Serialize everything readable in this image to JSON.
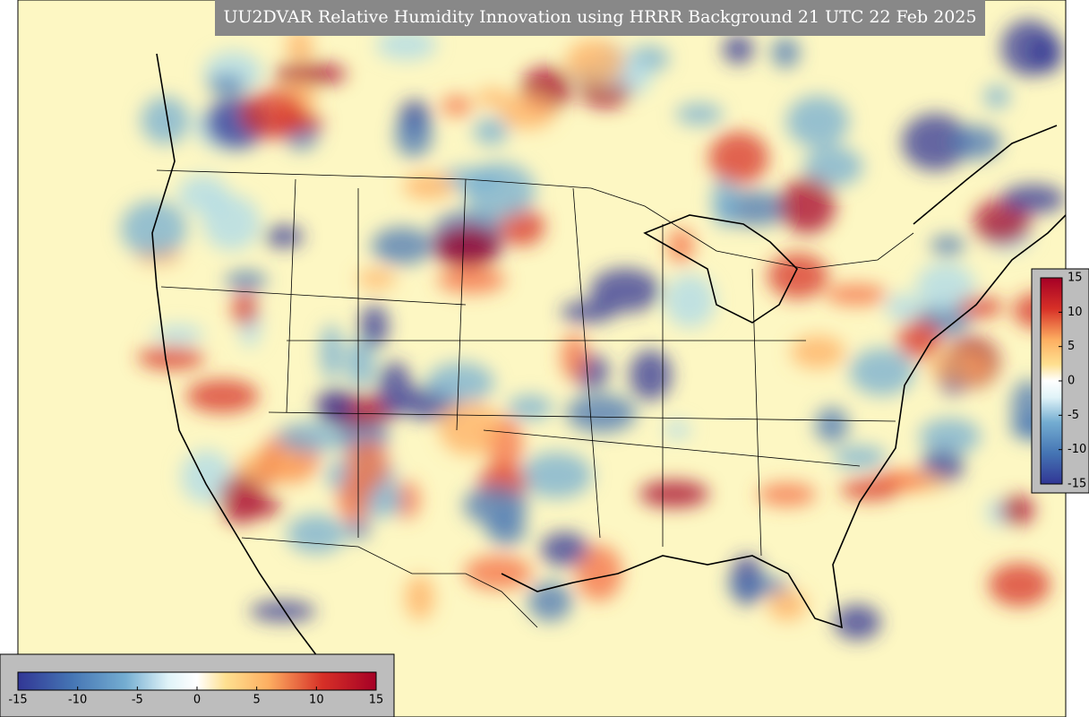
{
  "title": "UU2DVAR Relative Humidity Innovation using HRRR Background 21 UTC 22 Feb 2025",
  "colorbar": {
    "lim": [
      -15,
      15
    ],
    "ticks": [
      -15,
      -10,
      -5,
      0,
      5,
      10,
      15
    ]
  }
}
